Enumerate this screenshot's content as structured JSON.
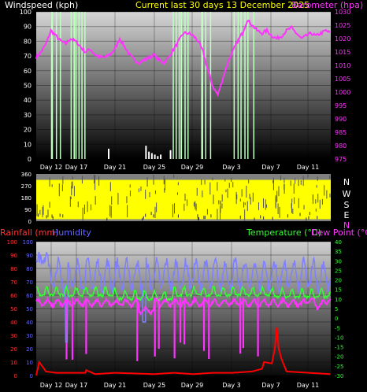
{
  "header": {
    "wind_label": "Windspeed (kph)",
    "current_label": "Current last 30 days 13 December 2025",
    "baro_label": "Barometer (hpa)"
  },
  "bottom_header": {
    "rain_label": "Rainfall (mm)",
    "humidity_label": "Humidity",
    "temp_label": "Temperature (°C)",
    "dew_label": "Dew Point (°C)"
  },
  "colors": {
    "background": "#000000",
    "plot_top": "#d8d8d8",
    "plot_bottom": "#000000",
    "barometer": "#ff33ff",
    "gust": "#bfffbf",
    "wind_bar": "#ffffff",
    "direction": "#ffff00",
    "rain": "#ff0000",
    "humidity": "#7f7fff",
    "temperature": "#33ff33",
    "dewpoint": "#ff33ff",
    "wind_axis": "#ffffff",
    "baro_axis": "#ff33ff",
    "rain_axis": "#ff3333",
    "humidity_axis": "#6666ff",
    "temp_axis": "#33ff33",
    "title_yellow": "#ffff00"
  },
  "x_labels": [
    "Day 12",
    "Day 17",
    "Day 21",
    "Day 25",
    "Day 29",
    "Day 3",
    "Day 7",
    "Day 11"
  ],
  "chart_data": [
    {
      "type": "line",
      "name": "wind-barometer",
      "x_days": [
        0,
        30
      ],
      "wind_axis": {
        "ticks": [
          0,
          10,
          20,
          30,
          40,
          50,
          60,
          70,
          80,
          90,
          100
        ],
        "ylim": [
          0,
          100
        ]
      },
      "baro_axis": {
        "ticks": [
          975,
          980,
          985,
          990,
          995,
          1000,
          1005,
          1010,
          1015,
          1020,
          1025,
          1030
        ],
        "ylim": [
          975,
          1030
        ]
      },
      "barometer": {
        "x": [
          0,
          0.5,
          1,
          1.5,
          2,
          2.5,
          3,
          3.5,
          4,
          4.5,
          5,
          5.5,
          6,
          6.5,
          7,
          7.5,
          8,
          8.5,
          9,
          9.5,
          10,
          10.5,
          11,
          11.5,
          12,
          12.5,
          13,
          13.5,
          14,
          14.5,
          15,
          15.5,
          16,
          16.5,
          17,
          17.5,
          18,
          18.5,
          19,
          19.5,
          20,
          20.5,
          21,
          21.5,
          22,
          22.5,
          23,
          23.5,
          24,
          24.5,
          25,
          25.5,
          26,
          26.5,
          27,
          27.5,
          28,
          28.5,
          29,
          29.5,
          30
        ],
        "values": [
          1013,
          1015,
          1018,
          1023,
          1021,
          1019,
          1018,
          1020,
          1019,
          1017,
          1015,
          1016,
          1014,
          1013,
          1013,
          1014,
          1016,
          1020,
          1017,
          1014,
          1012,
          1011,
          1012,
          1013,
          1014,
          1012,
          1011,
          1013,
          1016,
          1019,
          1022,
          1022,
          1021,
          1019,
          1015,
          1008,
          1002,
          999,
          1005,
          1011,
          1015,
          1019,
          1022,
          1027,
          1025,
          1023,
          1022,
          1023,
          1021,
          1020,
          1021,
          1023,
          1024,
          1022,
          1020,
          1021,
          1022,
          1021,
          1022,
          1023,
          1022
        ]
      },
      "gust_bands": [
        [
          1.5,
          1.7
        ],
        [
          2.0,
          2.1
        ],
        [
          2.4,
          2.5
        ],
        [
          3.5,
          3.6
        ],
        [
          3.8,
          3.95
        ],
        [
          4.0,
          4.1
        ],
        [
          4.3,
          4.4
        ],
        [
          4.6,
          4.7
        ],
        [
          4.9,
          5.0
        ],
        [
          13.9,
          14.0
        ],
        [
          14.2,
          14.3
        ],
        [
          14.5,
          14.6
        ],
        [
          14.7,
          14.85
        ],
        [
          15.1,
          15.2
        ],
        [
          15.4,
          15.5
        ],
        [
          16.8,
          17.0
        ],
        [
          17.2,
          17.3
        ],
        [
          17.7,
          17.8
        ],
        [
          20.1,
          20.2
        ],
        [
          20.5,
          20.6
        ],
        [
          20.8,
          20.9
        ],
        [
          21.2,
          21.3
        ],
        [
          21.5,
          21.6
        ],
        [
          22.1,
          22.2
        ]
      ],
      "wind_bars": {
        "x": [
          7.3,
          11.1,
          11.4,
          11.7,
          12.0,
          12.3,
          12.6,
          13.6
        ],
        "values": [
          7,
          9,
          5,
          4,
          3,
          2,
          3,
          6
        ]
      }
    },
    {
      "type": "scatter",
      "name": "wind-direction",
      "y_ticks": [
        "360",
        "270",
        "180",
        "90",
        "0"
      ],
      "compass": [
        "N",
        "W",
        "S",
        "E",
        "N"
      ],
      "ylim": [
        0,
        360
      ],
      "band_top": 315,
      "band_bottom": 15
    },
    {
      "type": "line",
      "name": "temp-humidity-rain",
      "left_ticks": [
        0,
        10,
        20,
        30,
        40,
        50,
        60,
        70,
        80,
        90,
        100
      ],
      "left_ylim": [
        0,
        100
      ],
      "right_ticks": [
        -30,
        -25,
        -20,
        -15,
        -10,
        -5,
        0,
        5,
        10,
        15,
        20,
        25,
        30,
        35,
        40
      ],
      "right_ylim": [
        -30,
        40
      ],
      "humidity_base": 75,
      "temperature_base": 13,
      "dewpoint_base": 8,
      "rain": {
        "x": [
          0,
          0.3,
          1,
          2,
          5,
          5.1,
          6,
          8,
          12,
          14,
          16,
          18,
          20,
          22,
          23.0,
          23.2,
          24,
          24.3,
          24.5,
          24.7,
          25.0,
          25.5,
          30
        ],
        "values": [
          0,
          10,
          3,
          2,
          2,
          4,
          1,
          2,
          1,
          2,
          1,
          2,
          2,
          3,
          5,
          10,
          9,
          20,
          36,
          20,
          12,
          3,
          1
        ]
      }
    }
  ]
}
